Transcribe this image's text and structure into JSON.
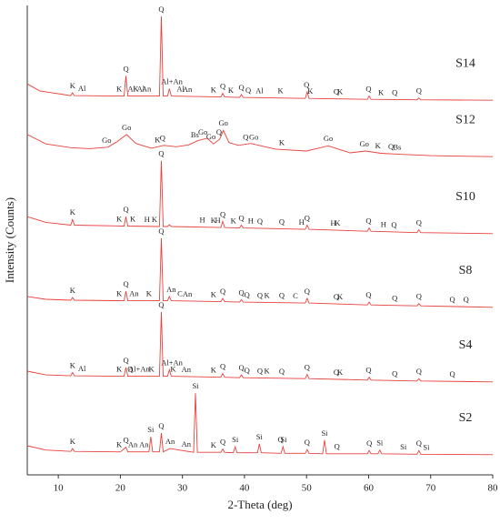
{
  "chart_data": {
    "type": "line",
    "xlabel": "2-Theta (deg)",
    "ylabel": "Intensity (Counts)",
    "xlim": [
      5,
      80
    ],
    "xticks": [
      10,
      20,
      30,
      40,
      50,
      60,
      70,
      80
    ],
    "ylim": [
      0,
      100
    ],
    "series": [
      {
        "name": "S14",
        "color": "#e8413c",
        "x": [
          5,
          7,
          12,
          12.3,
          12.6,
          20.6,
          20.9,
          21.2,
          26.3,
          26.6,
          26.9,
          27.6,
          27.9,
          28.2,
          36.2,
          36.5,
          36.8,
          39.2,
          39.5,
          39.8,
          49.8,
          50.1,
          50.4,
          59.8,
          60.1,
          60.4,
          67.8,
          68.1,
          68.4,
          80
        ],
        "values": [
          83.3,
          81.8,
          80.8,
          81.4,
          80.8,
          80.7,
          85.0,
          80.7,
          80.7,
          97.7,
          80.7,
          80.7,
          82.3,
          80.7,
          80.5,
          81.3,
          80.5,
          80.4,
          81.0,
          80.4,
          80.2,
          81.6,
          80.2,
          80.0,
          80.7,
          80.0,
          79.9,
          80.3,
          79.9,
          79.8
        ],
        "annotations": [
          {
            "text": "K",
            "x": 12.3
          },
          {
            "text": "Al",
            "x": 13.8
          },
          {
            "text": "K",
            "x": 19.8
          },
          {
            "text": "Q",
            "x": 20.9
          },
          {
            "text": "Al",
            "x": 21.8
          },
          {
            "text": "K",
            "x": 22.5
          },
          {
            "text": "Al",
            "x": 23.3
          },
          {
            "text": "An",
            "x": 24.2
          },
          {
            "text": "Q",
            "x": 26.6
          },
          {
            "text": "Al+An",
            "x": 28.3
          },
          {
            "text": "Al",
            "x": 29.7
          },
          {
            "text": "An",
            "x": 30.8
          },
          {
            "text": "K",
            "x": 35
          },
          {
            "text": "Q",
            "x": 36.5
          },
          {
            "text": "K",
            "x": 37.8
          },
          {
            "text": "Q",
            "x": 39.5
          },
          {
            "text": "Q",
            "x": 40.6
          },
          {
            "text": "Al",
            "x": 42.4
          },
          {
            "text": "K",
            "x": 45.8
          },
          {
            "text": "Q",
            "x": 50.0
          },
          {
            "text": "K",
            "x": 50.6
          },
          {
            "text": "Q",
            "x": 54.8
          },
          {
            "text": "K",
            "x": 55.4
          },
          {
            "text": "Q",
            "x": 60.0
          },
          {
            "text": "K",
            "x": 62
          },
          {
            "text": "Q",
            "x": 64.2
          },
          {
            "text": "Q",
            "x": 68.1
          }
        ]
      },
      {
        "name": "S12",
        "color": "#e8413c",
        "x": [
          5,
          8,
          12,
          15,
          18,
          19.5,
          21,
          22.5,
          25,
          27,
          29,
          31,
          32.5,
          34,
          35,
          36,
          36.6,
          37.5,
          39,
          41,
          45,
          50,
          53.5,
          57,
          59.5,
          62,
          65,
          70,
          80
        ],
        "values": [
          72.5,
          70.5,
          69.7,
          69.5,
          69.8,
          71.0,
          72.5,
          70.6,
          69.6,
          70.2,
          69.9,
          70.3,
          71.2,
          71.7,
          70.5,
          71.5,
          73.4,
          70.8,
          70.2,
          70.6,
          69.4,
          69.0,
          70.1,
          68.6,
          69.0,
          68.5,
          68.3,
          68.0,
          67.8
        ],
        "annotations": [
          {
            "text": "Go",
            "x": 17.8
          },
          {
            "text": "Go",
            "x": 21
          },
          {
            "text": "K",
            "x": 26.0
          },
          {
            "text": "Q",
            "x": 26.8
          },
          {
            "text": "Bs",
            "x": 32
          },
          {
            "text": "Go",
            "x": 33.3
          },
          {
            "text": "Go",
            "x": 34.6
          },
          {
            "text": "Q",
            "x": 35.9
          },
          {
            "text": "Go",
            "x": 36.6
          },
          {
            "text": "Q",
            "x": 40.2
          },
          {
            "text": "Go",
            "x": 41.5
          },
          {
            "text": "K",
            "x": 46
          },
          {
            "text": "Go",
            "x": 53.5
          },
          {
            "text": "Go",
            "x": 59.3
          },
          {
            "text": "K",
            "x": 61.5
          },
          {
            "text": "Q",
            "x": 63.6
          },
          {
            "text": "Bs",
            "x": 64.6
          }
        ]
      },
      {
        "name": "S10",
        "color": "#e8413c",
        "x": [
          5,
          8,
          12,
          12.3,
          12.6,
          20.6,
          20.9,
          21.2,
          26.3,
          26.6,
          26.9,
          27.6,
          27.9,
          28.2,
          36.2,
          36.5,
          36.8,
          39.2,
          39.5,
          39.8,
          49.8,
          50.1,
          50.4,
          59.8,
          60.1,
          60.4,
          67.8,
          68.1,
          68.4,
          80
        ],
        "values": [
          55.0,
          53.8,
          53.2,
          54.4,
          53.2,
          53.0,
          55.0,
          53.0,
          52.9,
          66.9,
          52.9,
          52.9,
          53.3,
          52.9,
          52.7,
          54.0,
          52.7,
          52.6,
          53.2,
          52.6,
          52.3,
          53.2,
          52.3,
          51.9,
          52.6,
          51.9,
          51.6,
          52.2,
          51.6,
          51.4
        ],
        "annotations": [
          {
            "text": "K",
            "x": 12.3
          },
          {
            "text": "K",
            "x": 19.8
          },
          {
            "text": "Q",
            "x": 20.9
          },
          {
            "text": "K",
            "x": 22
          },
          {
            "text": "H",
            "x": 24.3
          },
          {
            "text": "K",
            "x": 25.5
          },
          {
            "text": "Q",
            "x": 26.6
          },
          {
            "text": "H",
            "x": 33.2
          },
          {
            "text": "K",
            "x": 35
          },
          {
            "text": "H",
            "x": 35.7
          },
          {
            "text": "Q",
            "x": 36.5
          },
          {
            "text": "K",
            "x": 38.2
          },
          {
            "text": "Q",
            "x": 39.5
          },
          {
            "text": "H",
            "x": 41
          },
          {
            "text": "Q",
            "x": 42.5
          },
          {
            "text": "Q",
            "x": 46
          },
          {
            "text": "H",
            "x": 49.2
          },
          {
            "text": "Q",
            "x": 50.1
          },
          {
            "text": "H",
            "x": 54.3
          },
          {
            "text": "K",
            "x": 55.0
          },
          {
            "text": "Q",
            "x": 60
          },
          {
            "text": "H",
            "x": 62.4
          },
          {
            "text": "Q",
            "x": 64.1
          },
          {
            "text": "Q",
            "x": 68.1
          }
        ]
      },
      {
        "name": "S8",
        "color": "#e8413c",
        "x": [
          5,
          8,
          12,
          12.3,
          12.6,
          20.6,
          20.9,
          21.2,
          26.3,
          26.6,
          26.9,
          27.6,
          27.9,
          28.2,
          36.2,
          36.5,
          36.8,
          39.2,
          39.5,
          39.8,
          49.8,
          50.1,
          50.4,
          59.8,
          60.1,
          60.4,
          67.8,
          68.1,
          68.4,
          80
        ],
        "values": [
          38.0,
          37.4,
          37.2,
          37.8,
          37.2,
          37.1,
          39.1,
          37.1,
          37.1,
          50.4,
          37.1,
          37.1,
          38.0,
          37.1,
          36.9,
          37.6,
          36.9,
          36.8,
          37.3,
          36.8,
          36.6,
          37.6,
          36.6,
          36.2,
          36.8,
          36.2,
          36.0,
          36.5,
          36.0,
          35.7
        ],
        "annotations": [
          {
            "text": "K",
            "x": 12.3
          },
          {
            "text": "K",
            "x": 19.8
          },
          {
            "text": "Q",
            "x": 20.9
          },
          {
            "text": "An",
            "x": 22.2
          },
          {
            "text": "K",
            "x": 24.6
          },
          {
            "text": "Q",
            "x": 26.6
          },
          {
            "text": "An",
            "x": 28.2
          },
          {
            "text": "C",
            "x": 29.6
          },
          {
            "text": "An",
            "x": 30.8
          },
          {
            "text": "K",
            "x": 35
          },
          {
            "text": "Q",
            "x": 36.5
          },
          {
            "text": "Q",
            "x": 39.5
          },
          {
            "text": "Q",
            "x": 40.4
          },
          {
            "text": "Q",
            "x": 42.5
          },
          {
            "text": "K",
            "x": 43.6
          },
          {
            "text": "Q",
            "x": 46
          },
          {
            "text": "C",
            "x": 48.2
          },
          {
            "text": "Q",
            "x": 50.1
          },
          {
            "text": "Q",
            "x": 54.8
          },
          {
            "text": "K",
            "x": 55.4
          },
          {
            "text": "Q",
            "x": 60
          },
          {
            "text": "Q",
            "x": 64.2
          },
          {
            "text": "Q",
            "x": 68.1
          },
          {
            "text": "Q",
            "x": 73.5
          },
          {
            "text": "Q",
            "x": 75.7
          }
        ]
      },
      {
        "name": "S4",
        "color": "#e8413c",
        "x": [
          5,
          8,
          12,
          12.3,
          12.6,
          20.6,
          20.9,
          21.2,
          26.3,
          26.6,
          26.9,
          27.6,
          27.9,
          28.2,
          36.2,
          36.5,
          36.8,
          39.2,
          39.5,
          39.8,
          49.8,
          50.1,
          50.4,
          59.8,
          60.1,
          60.4,
          67.8,
          68.1,
          68.4,
          80
        ],
        "values": [
          22.1,
          21.3,
          21.1,
          21.8,
          21.1,
          21.0,
          22.9,
          21.0,
          21.0,
          34.7,
          21.0,
          21.0,
          22.4,
          21.0,
          20.8,
          21.6,
          20.8,
          20.7,
          21.3,
          20.7,
          20.5,
          21.4,
          20.5,
          20.2,
          20.8,
          20.2,
          20.0,
          20.5,
          20.0,
          19.8
        ],
        "annotations": [
          {
            "text": "K",
            "x": 12.3
          },
          {
            "text": "Al",
            "x": 13.8
          },
          {
            "text": "K",
            "x": 19.8
          },
          {
            "text": "Q",
            "x": 20.9
          },
          {
            "text": "Q",
            "x": 21.6
          },
          {
            "text": "Al+An",
            "x": 23.0
          },
          {
            "text": "K",
            "x": 25.0
          },
          {
            "text": "Q",
            "x": 26.6
          },
          {
            "text": "Al+An",
            "x": 28.3
          },
          {
            "text": "K",
            "x": 28.5
          },
          {
            "text": "An",
            "x": 30.6
          },
          {
            "text": "K",
            "x": 35
          },
          {
            "text": "Q",
            "x": 36.5
          },
          {
            "text": "Q",
            "x": 39.5
          },
          {
            "text": "Q",
            "x": 40.4
          },
          {
            "text": "Q",
            "x": 42.5
          },
          {
            "text": "K",
            "x": 43.6
          },
          {
            "text": "Q",
            "x": 46
          },
          {
            "text": "Q",
            "x": 50.1
          },
          {
            "text": "Q",
            "x": 54.8
          },
          {
            "text": "K",
            "x": 55.4
          },
          {
            "text": "Q",
            "x": 60
          },
          {
            "text": "Q",
            "x": 64.2
          },
          {
            "text": "Q",
            "x": 68.1
          },
          {
            "text": "Q",
            "x": 73.5
          }
        ]
      },
      {
        "name": "S2",
        "color": "#e8413c",
        "x": [
          5,
          8,
          12,
          12.3,
          12.6,
          20,
          20.9,
          21.2,
          24.6,
          24.9,
          25.2,
          26.3,
          26.6,
          26.9,
          28,
          31.8,
          32.1,
          32.4,
          36.2,
          36.5,
          36.8,
          38.2,
          38.5,
          38.8,
          42.1,
          42.4,
          42.7,
          45.9,
          46.2,
          46.5,
          49.8,
          50.1,
          50.4,
          52.6,
          52.9,
          53.2,
          59.8,
          60.1,
          60.4,
          61.5,
          61.8,
          62.1,
          67.8,
          68.1,
          68.4,
          80
        ],
        "values": [
          6.2,
          5.3,
          5.0,
          5.6,
          5.0,
          4.9,
          5.9,
          4.9,
          4.9,
          8.1,
          4.9,
          4.9,
          8.9,
          4.9,
          5.6,
          4.8,
          17.4,
          4.8,
          4.8,
          5.5,
          4.8,
          4.7,
          6.0,
          4.7,
          4.7,
          6.6,
          4.7,
          4.6,
          6.0,
          4.6,
          4.6,
          5.4,
          4.6,
          4.5,
          7.4,
          4.5,
          4.5,
          5.2,
          4.5,
          4.5,
          5.3,
          4.5,
          4.4,
          5.2,
          4.4,
          4.3
        ],
        "annotations": [
          {
            "text": "K",
            "x": 12.3
          },
          {
            "text": "K",
            "x": 19.8
          },
          {
            "text": "Q",
            "x": 20.9
          },
          {
            "text": "An",
            "x": 22.0
          },
          {
            "text": "An",
            "x": 23.8
          },
          {
            "text": "Si",
            "x": 24.9
          },
          {
            "text": "Q",
            "x": 26.6
          },
          {
            "text": "An",
            "x": 28
          },
          {
            "text": "An",
            "x": 30.6
          },
          {
            "text": "Si",
            "x": 32.1
          },
          {
            "text": "K",
            "x": 35
          },
          {
            "text": "Q",
            "x": 36.5
          },
          {
            "text": "Si",
            "x": 38.5
          },
          {
            "text": "Si",
            "x": 42.4
          },
          {
            "text": "Q",
            "x": 45.8
          },
          {
            "text": "Si",
            "x": 46.3
          },
          {
            "text": "Q",
            "x": 50.1
          },
          {
            "text": "Si",
            "x": 52.9
          },
          {
            "text": "Q",
            "x": 54.9
          },
          {
            "text": "Q",
            "x": 60.1
          },
          {
            "text": "Si",
            "x": 61.8
          },
          {
            "text": "Si",
            "x": 65.6
          },
          {
            "text": "Q",
            "x": 68.1
          },
          {
            "text": "Si",
            "x": 69.3
          }
        ]
      }
    ]
  }
}
